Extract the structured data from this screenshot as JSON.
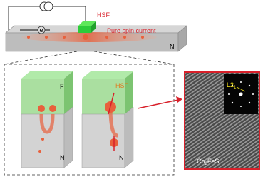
{
  "top_device": {
    "hsf_label": "HSF",
    "current_label": "Pure spin current",
    "n_label": "N",
    "electron_label": "e"
  },
  "panels": [
    {
      "top": "F",
      "bottom": "N"
    },
    {
      "top": "HSF",
      "bottom": "N"
    }
  ],
  "micrograph": {
    "phase": "L2",
    "phase_sub": "1",
    "material": "Co",
    "material_sub": "2",
    "material_rest": "FeSi"
  }
}
